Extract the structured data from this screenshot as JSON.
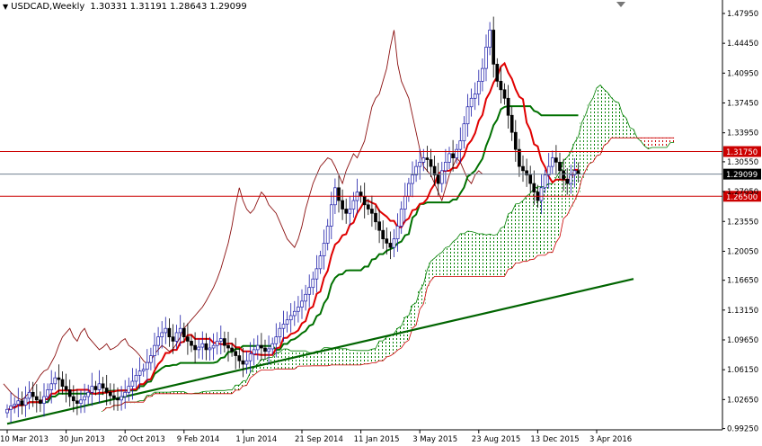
{
  "header": {
    "symbol": "USDCAD,Weekly",
    "open": "1.30331",
    "high": "1.31191",
    "low": "1.28643",
    "close": "1.29099"
  },
  "corner_marker": "down-triangle-icon",
  "colors": {
    "bull": "#1a1aa8",
    "bear": "#000000",
    "tenkan": "#e00000",
    "kijun": "#007000",
    "chikou": "#8b1010",
    "kumo_up": "#008000",
    "kumo_down": "#cc0000",
    "trendline": "#006400",
    "level_red": "#cc0000",
    "level_current": "#708090"
  },
  "chart_data": {
    "type": "candlestick",
    "indicator": "Ichimoku",
    "ylim": [
      0.991,
      1.4953
    ],
    "price_ticks": [
      "1.47950",
      "1.44450",
      "1.40950",
      "1.37450",
      "1.33950",
      "1.30550",
      "1.27050",
      "1.23550",
      "1.20050",
      "1.16650",
      "1.13150",
      "1.09650",
      "1.06150",
      "1.02650",
      "0.99250"
    ],
    "date_ticks": [
      {
        "label": "10 Mar 2013",
        "week": 0
      },
      {
        "label": "30 Jun 2013",
        "week": 16
      },
      {
        "label": "20 Oct 2013",
        "week": 32
      },
      {
        "label": "9 Feb 2014",
        "week": 48
      },
      {
        "label": "1 Jun 2014",
        "week": 64
      },
      {
        "label": "21 Sep 2014",
        "week": 80
      },
      {
        "label": "11 Jan 2015",
        "week": 96
      },
      {
        "label": "3 May 2015",
        "week": 112
      },
      {
        "label": "23 Aug 2015",
        "week": 128
      },
      {
        "label": "13 Dec 2015",
        "week": 144
      },
      {
        "label": "3 Apr 2016",
        "week": 160
      }
    ],
    "levels": [
      {
        "value": 1.3175,
        "label": "1.31750",
        "style": "red"
      },
      {
        "value": 1.29099,
        "label": "1.29099",
        "style": "current"
      },
      {
        "value": 1.265,
        "label": "1.26500",
        "style": "red"
      }
    ],
    "trendline": {
      "start": {
        "week": 0,
        "price": 0.998
      },
      "end": {
        "week": 170,
        "price": 1.168
      }
    },
    "close_series": [
      1.015,
      1.019,
      1.021,
      1.025,
      1.02,
      1.028,
      1.035,
      1.03,
      1.026,
      1.022,
      1.03,
      1.038,
      1.045,
      1.052,
      1.05,
      1.042,
      1.038,
      1.03,
      1.025,
      1.022,
      1.026,
      1.03,
      1.035,
      1.042,
      1.038,
      1.045,
      1.04,
      1.035,
      1.031,
      1.028,
      1.026,
      1.03,
      1.035,
      1.042,
      1.048,
      1.055,
      1.06,
      1.062,
      1.07,
      1.078,
      1.09,
      1.1,
      1.105,
      1.11,
      1.1,
      1.095,
      1.105,
      1.11,
      1.1,
      1.095,
      1.09,
      1.085,
      1.088,
      1.092,
      1.085,
      1.087,
      1.09,
      1.095,
      1.098,
      1.09,
      1.087,
      1.083,
      1.078,
      1.072,
      1.068,
      1.072,
      1.08,
      1.085,
      1.09,
      1.087,
      1.083,
      1.086,
      1.092,
      1.1,
      1.11,
      1.115,
      1.12,
      1.125,
      1.13,
      1.135,
      1.142,
      1.15,
      1.158,
      1.168,
      1.18,
      1.195,
      1.21,
      1.23,
      1.255,
      1.275,
      1.26,
      1.25,
      1.245,
      1.25,
      1.26,
      1.27,
      1.265,
      1.255,
      1.25,
      1.245,
      1.235,
      1.225,
      1.215,
      1.21,
      1.205,
      1.215,
      1.23,
      1.25,
      1.265,
      1.28,
      1.29,
      1.3,
      1.305,
      1.31,
      1.308,
      1.3,
      1.29,
      1.28,
      1.295,
      1.305,
      1.315,
      1.31,
      1.32,
      1.33,
      1.35,
      1.37,
      1.38,
      1.385,
      1.4,
      1.415,
      1.44,
      1.46,
      1.42,
      1.4,
      1.39,
      1.38,
      1.36,
      1.34,
      1.32,
      1.3,
      1.295,
      1.29,
      1.28,
      1.27,
      1.26,
      1.275,
      1.29,
      1.3,
      1.31,
      1.305,
      1.295,
      1.285,
      1.28,
      1.29,
      1.295,
      1.291
    ]
  }
}
